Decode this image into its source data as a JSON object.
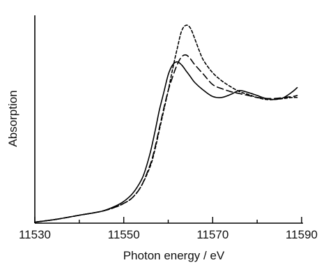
{
  "chart_data": {
    "type": "line",
    "xlabel": "Photon energy / eV",
    "ylabel": "Absorption",
    "xlim": [
      11530,
      11590
    ],
    "ylim": [
      0,
      1.05
    ],
    "xticks": [
      11530,
      11550,
      11570,
      11590
    ],
    "xticks_minor": [
      11540,
      11560,
      11580
    ],
    "xtick_labels": [
      "11530",
      "11550",
      "11570",
      "11590"
    ],
    "y_tick_labels_shown": false,
    "legend": "none",
    "series": [
      {
        "line_style": "solid",
        "x": [
          11530,
          11535,
          11540,
          11545,
          11548,
          11550,
          11552,
          11554,
          11555,
          11556,
          11557,
          11558,
          11559,
          11560,
          11561,
          11562,
          11563,
          11564,
          11565,
          11566,
          11568,
          11570,
          11572,
          11574,
          11576,
          11578,
          11580,
          11582,
          11584,
          11586,
          11588,
          11589
        ],
        "y": [
          0.005,
          0.02,
          0.04,
          0.06,
          0.085,
          0.11,
          0.15,
          0.22,
          0.28,
          0.36,
          0.46,
          0.57,
          0.66,
          0.75,
          0.8,
          0.815,
          0.8,
          0.77,
          0.74,
          0.71,
          0.67,
          0.64,
          0.635,
          0.65,
          0.67,
          0.66,
          0.645,
          0.63,
          0.625,
          0.635,
          0.665,
          0.685
        ]
      },
      {
        "line_style": "long-dash",
        "x": [
          11530,
          11535,
          11540,
          11545,
          11548,
          11550,
          11552,
          11554,
          11556,
          11557,
          11558,
          11559,
          11560,
          11561,
          11562,
          11563,
          11564,
          11565,
          11566,
          11568,
          11570,
          11572,
          11574,
          11576,
          11578,
          11580,
          11582,
          11584,
          11586,
          11588,
          11589
        ],
        "y": [
          0.005,
          0.02,
          0.04,
          0.06,
          0.08,
          0.1,
          0.13,
          0.19,
          0.3,
          0.38,
          0.48,
          0.58,
          0.67,
          0.74,
          0.8,
          0.84,
          0.85,
          0.83,
          0.8,
          0.75,
          0.7,
          0.68,
          0.665,
          0.655,
          0.645,
          0.635,
          0.63,
          0.63,
          0.635,
          0.64,
          0.645
        ]
      },
      {
        "line_style": "short-dash",
        "x": [
          11530,
          11535,
          11540,
          11545,
          11548,
          11550,
          11552,
          11554,
          11556,
          11557,
          11558,
          11559,
          11560,
          11561,
          11562,
          11563,
          11564,
          11565,
          11566,
          11567,
          11568,
          11570,
          11572,
          11574,
          11576,
          11578,
          11580,
          11582,
          11584,
          11586,
          11588,
          11589
        ],
        "y": [
          0.005,
          0.02,
          0.04,
          0.06,
          0.08,
          0.1,
          0.13,
          0.19,
          0.29,
          0.37,
          0.47,
          0.57,
          0.67,
          0.78,
          0.88,
          0.97,
          1.0,
          0.985,
          0.93,
          0.87,
          0.82,
          0.76,
          0.72,
          0.69,
          0.665,
          0.65,
          0.635,
          0.625,
          0.625,
          0.63,
          0.635,
          0.635
        ]
      }
    ]
  }
}
